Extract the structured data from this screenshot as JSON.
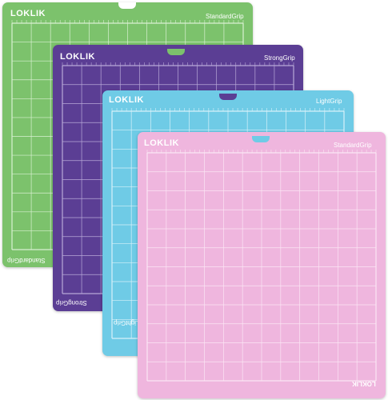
{
  "mats": [
    {
      "id": "standard",
      "brand": "LOKLIK",
      "grip": "StandardGrip",
      "color": "#7cc26c",
      "grid": "#d9f0d2",
      "hang": "#ffffff"
    },
    {
      "id": "strong",
      "brand": "LOKLIK",
      "grip": "StrongGrip",
      "color": "#5b3e94",
      "grid": "#b8a8d8",
      "hang": "#7cc26c"
    },
    {
      "id": "light",
      "brand": "LOKLIK",
      "grip": "LightGrip",
      "color": "#6fcbe6",
      "grid": "#d8f1f9",
      "hang": "#5b3e94"
    },
    {
      "id": "standard-pink",
      "brand": "LOKLIK",
      "grip": "StandardGrip",
      "color": "#efb6de",
      "grid": "#fbe6f4",
      "hang": "#6fcbe6"
    }
  ]
}
